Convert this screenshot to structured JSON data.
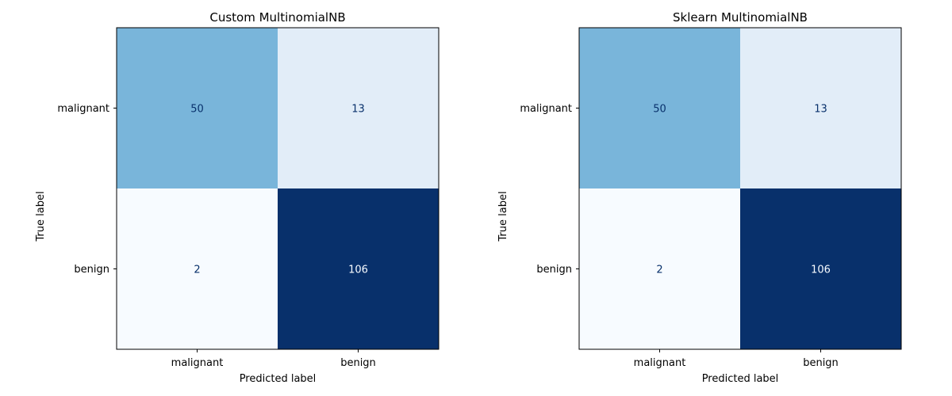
{
  "chart_data": [
    {
      "type": "heatmap",
      "title": "Custom MultinomialNB",
      "xlabel": "Predicted label",
      "ylabel": "True label",
      "x_categories": [
        "malignant",
        "benign"
      ],
      "y_categories": [
        "malignant",
        "benign"
      ],
      "values": [
        [
          50,
          13
        ],
        [
          2,
          106
        ]
      ],
      "colormap": "Blues",
      "vmin": 2,
      "vmax": 106,
      "grid": false
    },
    {
      "type": "heatmap",
      "title": "Sklearn MultinomialNB",
      "xlabel": "Predicted label",
      "ylabel": "True label",
      "x_categories": [
        "malignant",
        "benign"
      ],
      "y_categories": [
        "malignant",
        "benign"
      ],
      "values": [
        [
          50,
          13
        ],
        [
          2,
          106
        ]
      ],
      "colormap": "Blues",
      "vmin": 2,
      "vmax": 106,
      "grid": false
    }
  ],
  "colors": {
    "blues_low": "#f7fbff",
    "blues_lightmid": "#deebf7",
    "blues_mid": "#c6dbef",
    "blues_midhigh": "#6baed6",
    "blues_high": "#08306b",
    "text_dark": "#08306b",
    "text_light": "#f7fbff"
  }
}
